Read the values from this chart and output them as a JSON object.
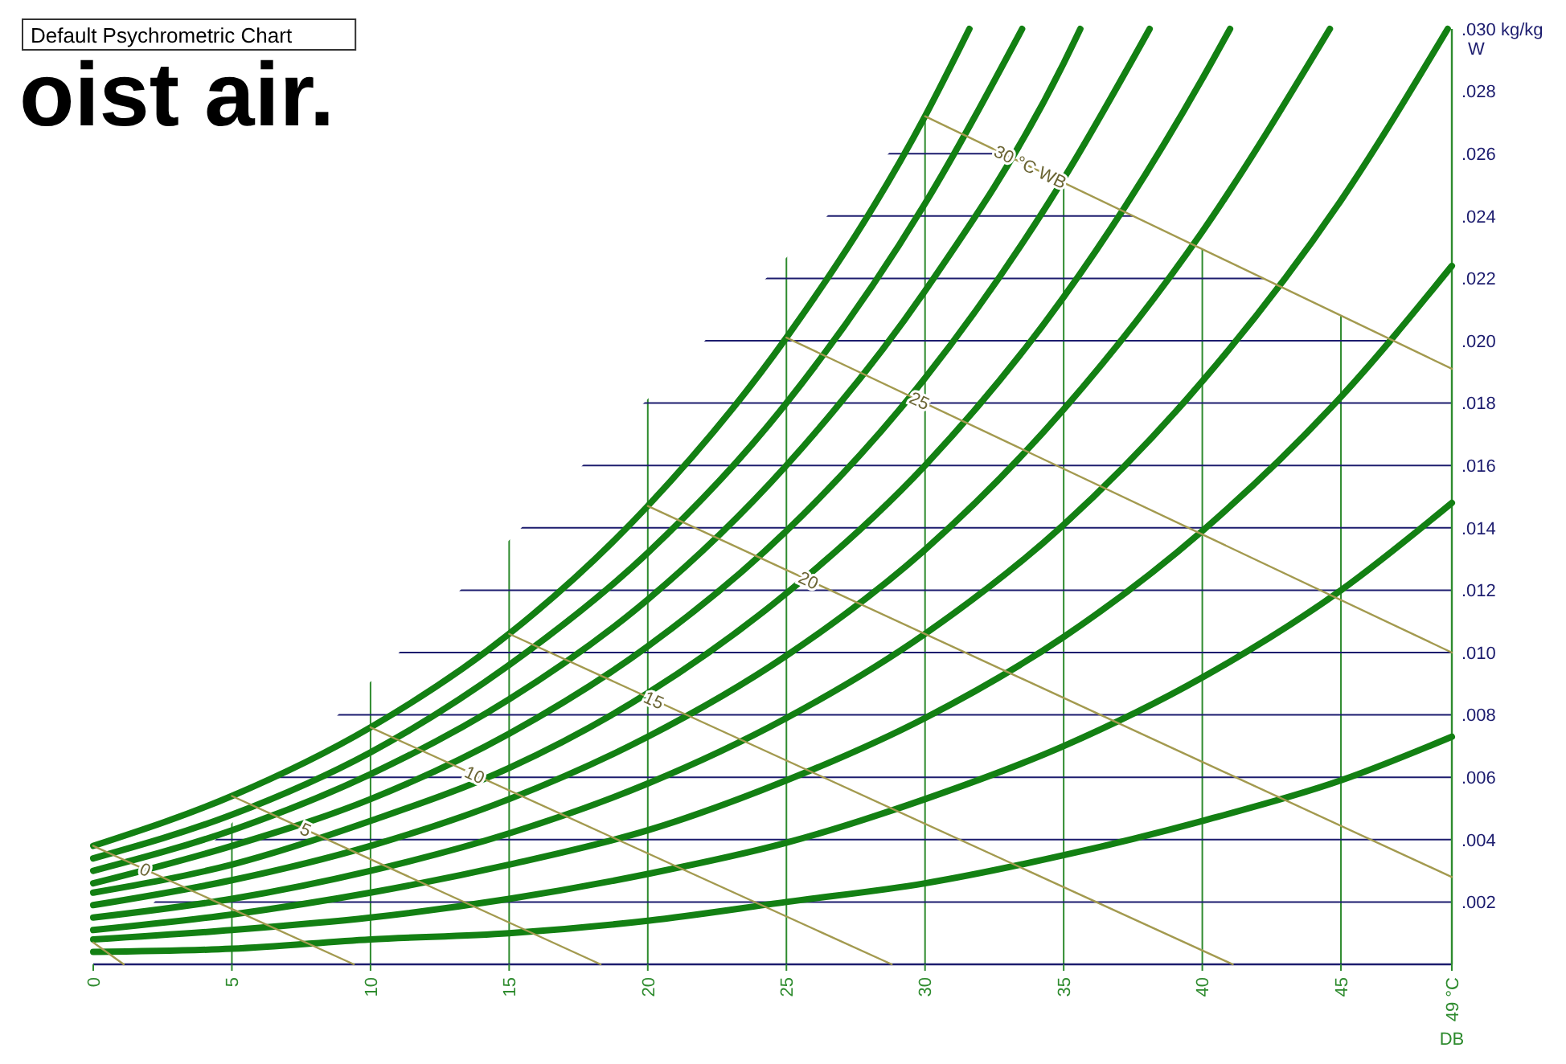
{
  "chart_data": {
    "type": "line",
    "title": "oist air.",
    "annotations": [
      "Default Psychrometric Chart"
    ],
    "xlabel": "DB",
    "ylabel": "W",
    "xlim": [
      0,
      49
    ],
    "ylim": [
      0,
      0.03
    ],
    "xticks": [
      0,
      5,
      10,
      15,
      20,
      25,
      30,
      35,
      40,
      45,
      {
        "value": 49,
        "label": "49 °C"
      }
    ],
    "yticks": [
      {
        "value": 0.002,
        "label": ".002"
      },
      {
        "value": 0.004,
        "label": ".004"
      },
      {
        "value": 0.006,
        "label": ".006"
      },
      {
        "value": 0.008,
        "label": ".008"
      },
      {
        "value": 0.01,
        "label": ".010"
      },
      {
        "value": 0.012,
        "label": ".012"
      },
      {
        "value": 0.014,
        "label": ".014"
      },
      {
        "value": 0.016,
        "label": ".016"
      },
      {
        "value": 0.018,
        "label": ".018"
      },
      {
        "value": 0.02,
        "label": ".020"
      },
      {
        "value": 0.022,
        "label": ".022"
      },
      {
        "value": 0.024,
        "label": ".024"
      },
      {
        "value": 0.026,
        "label": ".026"
      },
      {
        "value": 0.028,
        "label": ".028"
      },
      {
        "value": 0.03,
        "label": ".030 kg/kg"
      }
    ],
    "grid": true,
    "marker": "none",
    "line_style": "solid",
    "series": [
      {
        "color": "#138013",
        "x": [
          0,
          5,
          10,
          15,
          20,
          25,
          30,
          35,
          40,
          45,
          49
        ],
        "values": [
          0.0004,
          0.0005,
          0.0008,
          0.001,
          0.0014,
          0.002,
          0.0026,
          0.0035,
          0.0046,
          0.0059,
          0.0073
        ]
      },
      {
        "color": "#138013",
        "x": [
          0,
          5,
          10,
          15,
          20,
          25,
          30,
          35,
          40,
          45,
          49
        ],
        "values": [
          0.0008,
          0.0011,
          0.0015,
          0.0021,
          0.0029,
          0.0039,
          0.0053,
          0.007,
          0.0092,
          0.012,
          0.0148
        ]
      },
      {
        "color": "#138013",
        "x": [
          0,
          5,
          10,
          15,
          20,
          25,
          30,
          35,
          40,
          45,
          49
        ],
        "values": [
          0.0011,
          0.0016,
          0.0023,
          0.0032,
          0.0043,
          0.0059,
          0.0079,
          0.0105,
          0.0139,
          0.0182,
          0.0224
        ]
      },
      {
        "color": "#138013",
        "x": [
          0,
          5,
          10,
          15,
          20,
          25,
          30,
          35,
          40,
          45,
          48.85
        ],
        "values": [
          0.0015,
          0.0021,
          0.003,
          0.0042,
          0.0058,
          0.0079,
          0.0106,
          0.0141,
          0.0187,
          0.0245,
          0.03
        ]
      },
      {
        "color": "#138013",
        "x": [
          0,
          5,
          10,
          15,
          20,
          25,
          30,
          35,
          40,
          44.6
        ],
        "values": [
          0.0019,
          0.0027,
          0.0038,
          0.0053,
          0.0073,
          0.0099,
          0.0133,
          0.0178,
          0.0235,
          0.03
        ]
      },
      {
        "color": "#138013",
        "x": [
          0,
          5,
          10,
          15,
          20,
          25,
          30,
          35,
          40,
          41
        ],
        "values": [
          0.0023,
          0.0032,
          0.0046,
          0.0063,
          0.0087,
          0.0119,
          0.016,
          0.0214,
          0.0284,
          0.03
        ]
      },
      {
        "color": "#138013",
        "x": [
          0,
          5,
          10,
          15,
          20,
          25,
          30,
          35,
          38.1
        ],
        "values": [
          0.0026,
          0.0038,
          0.0053,
          0.0074,
          0.0102,
          0.0139,
          0.0188,
          0.0252,
          0.03
        ]
      },
      {
        "color": "#138013",
        "x": [
          0,
          5,
          10,
          15,
          20,
          25,
          30,
          35,
          35.6
        ],
        "values": [
          0.003,
          0.0043,
          0.0061,
          0.0085,
          0.0117,
          0.016,
          0.0216,
          0.0289,
          0.03
        ]
      },
      {
        "color": "#138013",
        "x": [
          0,
          5,
          10,
          15,
          20,
          25,
          30,
          33.5
        ],
        "values": [
          0.0034,
          0.0048,
          0.0068,
          0.0096,
          0.0132,
          0.018,
          0.0244,
          0.03
        ]
      },
      {
        "color": "#138013",
        "x": [
          0,
          5,
          10,
          15,
          20,
          25,
          30,
          31.6
        ],
        "values": [
          0.0038,
          0.0054,
          0.0076,
          0.0106,
          0.0147,
          0.0201,
          0.0272,
          0.03
        ]
      },
      {
        "color": "#a39a4f",
        "x": [
          0,
          1.1
        ],
        "values": [
          0.0007,
          0
        ]
      },
      {
        "name": "0",
        "color": "#a39a4f",
        "x": [
          0,
          9.4
        ],
        "values": [
          0.0038,
          0
        ]
      },
      {
        "name": "5",
        "color": "#a39a4f",
        "x": [
          5,
          18.3
        ],
        "values": [
          0.0054,
          0
        ]
      },
      {
        "name": "10",
        "color": "#a39a4f",
        "x": [
          10,
          28.8
        ],
        "values": [
          0.0076,
          0
        ]
      },
      {
        "name": "15",
        "color": "#a39a4f",
        "x": [
          15,
          41.1
        ],
        "values": [
          0.0106,
          0
        ]
      },
      {
        "name": "20",
        "color": "#a39a4f",
        "x": [
          20,
          49
        ],
        "values": [
          0.0147,
          0.0028
        ]
      },
      {
        "name": "25",
        "color": "#a39a4f",
        "x": [
          25,
          49
        ],
        "values": [
          0.0201,
          0.01
        ]
      },
      {
        "name": "30 °C WB",
        "color": "#a39a4f",
        "x": [
          30,
          49
        ],
        "values": [
          0.0272,
          0.0191
        ]
      }
    ]
  }
}
